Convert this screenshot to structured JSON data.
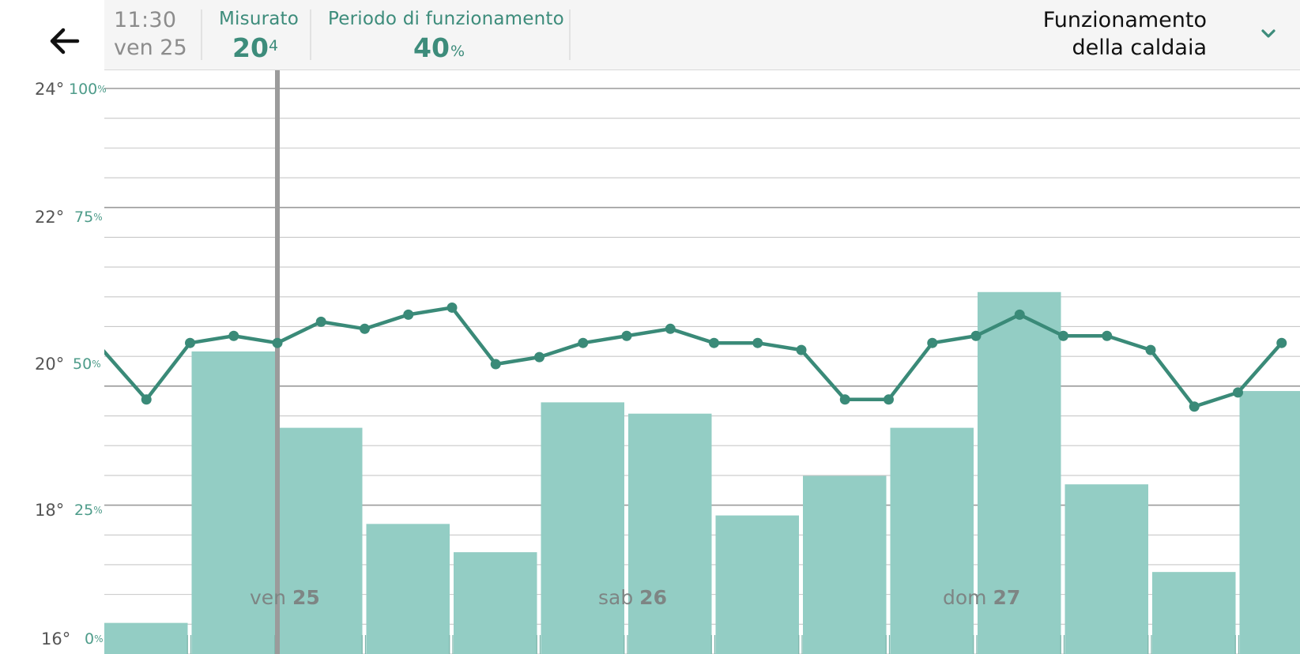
{
  "header": {
    "time": "11:30",
    "date": "ven 25",
    "measured_label": "Misurato",
    "measured_whole": "20",
    "measured_decimal": "4",
    "runtime_label": "Periodo di funzionamento",
    "runtime_value": "40",
    "runtime_unit": "%",
    "mode_line1": "Funzionamento",
    "mode_line2": "della caldaia"
  },
  "icons": {
    "back": "back-arrow-icon",
    "mode_dropdown": "chevron-down-icon"
  },
  "axis": {
    "temp_ticks": [
      "24°",
      "22°",
      "20°",
      "18°",
      "16°"
    ],
    "percent_ticks": [
      "100",
      "75",
      "50",
      "25",
      "0"
    ],
    "percent_unit": "%"
  },
  "day_labels": [
    {
      "weekday": "ven",
      "day": "25"
    },
    {
      "weekday": "sab",
      "day": "26"
    },
    {
      "weekday": "dom",
      "day": "27"
    }
  ],
  "colors": {
    "accent": "#3d8c7b",
    "bar": "#93cdc4",
    "line": "#3a8a78",
    "cursor": "#9b9b9b"
  },
  "chart_data": {
    "type": "bar+line",
    "x_unit": "2-hour slot",
    "bars": {
      "name": "Periodo di funzionamento",
      "unit": "%",
      "ylim": [
        0,
        100
      ],
      "values": [
        5.5,
        53.5,
        40,
        23,
        18,
        44.5,
        42.5,
        24.5,
        31.5,
        40,
        64,
        30,
        14.5,
        46.5
      ]
    },
    "temperature": {
      "name": "Misurato",
      "unit": "°",
      "ylim": [
        16,
        24
      ],
      "values": [
        20.3,
        19.6,
        20.4,
        20.5,
        20.4,
        20.7,
        20.6,
        20.8,
        20.9,
        20.1,
        20.2,
        20.4,
        20.5,
        20.6,
        20.4,
        20.4,
        20.3,
        19.6,
        19.6,
        20.4,
        20.5,
        20.8,
        20.5,
        20.5,
        20.3,
        19.5,
        19.7,
        20.4
      ]
    },
    "cursor_x": 4,
    "grid": true
  }
}
